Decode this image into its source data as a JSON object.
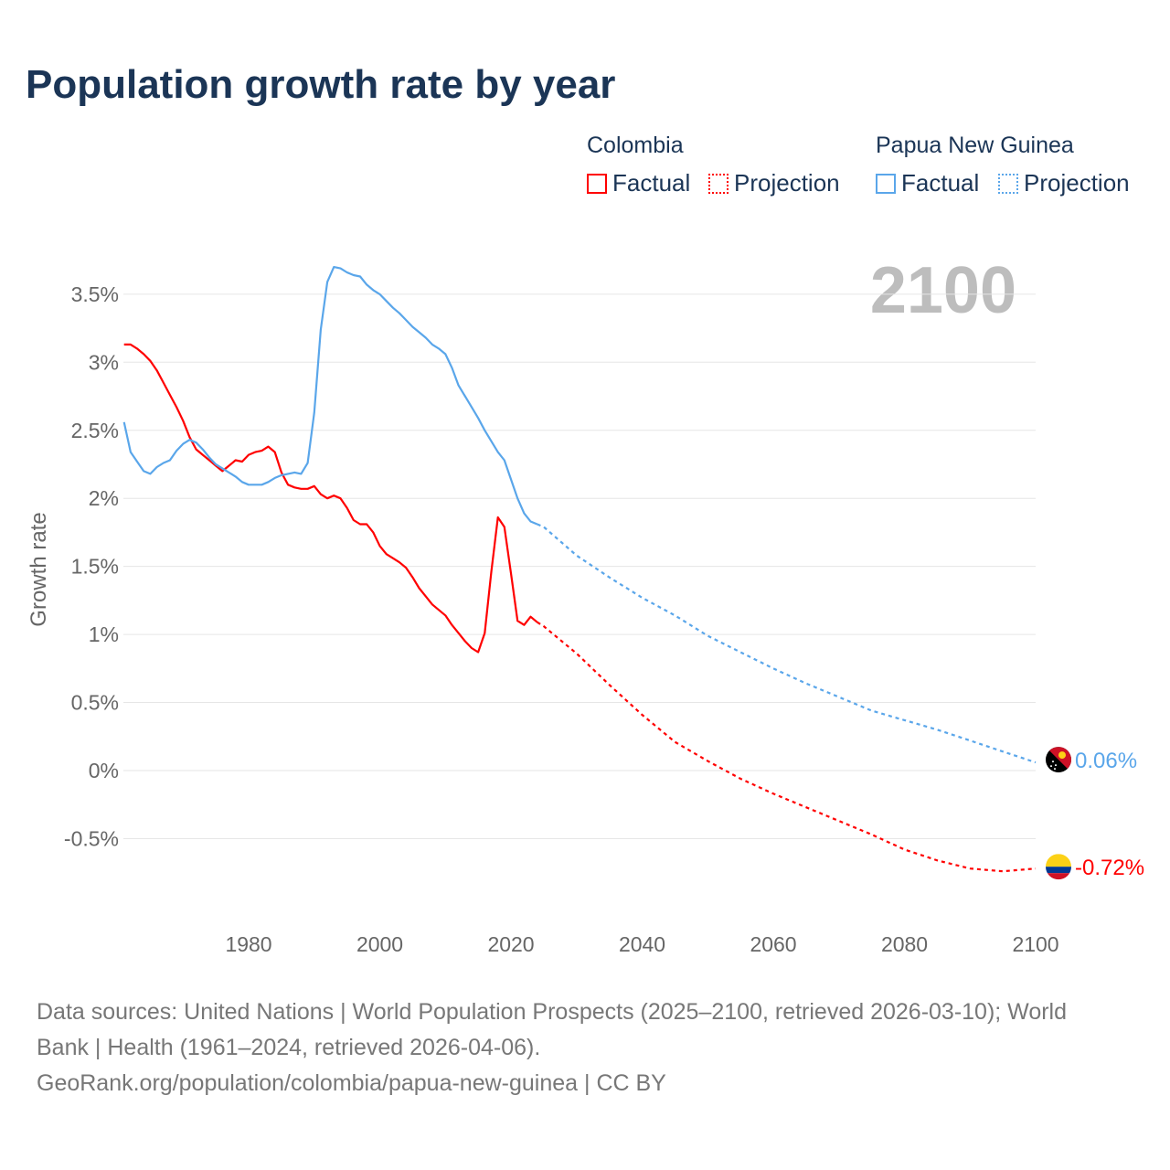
{
  "title": "Population growth rate by year",
  "legend": {
    "groups": [
      {
        "country": "Colombia",
        "factual": "Factual",
        "projection": "Projection",
        "color": "#ff0000"
      },
      {
        "country": "Papua New Guinea",
        "factual": "Factual",
        "projection": "Projection",
        "color": "#5aa6ea"
      }
    ]
  },
  "chart_data": {
    "type": "line",
    "title": "Population growth rate by year",
    "ylabel": "Growth rate",
    "xlabel": "",
    "year_watermark": "2100",
    "xlim": [
      1961,
      2100
    ],
    "ylim": [
      -1.0,
      3.8
    ],
    "x_ticks": [
      "1980",
      "2000",
      "2020",
      "2040",
      "2060",
      "2080",
      "2100"
    ],
    "x_tick_values": [
      1980,
      2000,
      2020,
      2040,
      2060,
      2080,
      2100
    ],
    "y_ticks": [
      "-0.5%",
      "0%",
      "0.5%",
      "1%",
      "1.5%",
      "2%",
      "2.5%",
      "3%",
      "3.5%"
    ],
    "y_tick_values": [
      -0.5,
      0,
      0.5,
      1,
      1.5,
      2,
      2.5,
      3,
      3.5
    ],
    "grid": true,
    "series": [
      {
        "name": "Colombia",
        "color": "#ff0000",
        "end_label": "-0.72%",
        "flag": "colombia-flag",
        "factual": {
          "start_year": 1961,
          "values": [
            3.13,
            3.13,
            3.1,
            3.06,
            3.01,
            2.94,
            2.85,
            2.76,
            2.67,
            2.57,
            2.45,
            2.36,
            2.32,
            2.28,
            2.24,
            2.2,
            2.24,
            2.28,
            2.27,
            2.32,
            2.34,
            2.35,
            2.38,
            2.34,
            2.19,
            2.1,
            2.08,
            2.07,
            2.07,
            2.09,
            2.03,
            2.0,
            2.02,
            2.0,
            1.93,
            1.84,
            1.81,
            1.81,
            1.75,
            1.65,
            1.59,
            1.56,
            1.53,
            1.49,
            1.42,
            1.34,
            1.28,
            1.22,
            1.18,
            1.14,
            1.07,
            1.01,
            0.95,
            0.9,
            0.87,
            1.01,
            1.46,
            1.86,
            1.79,
            1.45,
            1.1,
            1.07,
            1.13,
            1.09
          ]
        },
        "projection": {
          "years": [
            2024,
            2025,
            2030,
            2035,
            2040,
            2045,
            2050,
            2055,
            2060,
            2065,
            2070,
            2075,
            2080,
            2085,
            2090,
            2095,
            2100
          ],
          "values": [
            1.09,
            1.06,
            0.86,
            0.63,
            0.41,
            0.21,
            0.07,
            -0.06,
            -0.17,
            -0.27,
            -0.37,
            -0.47,
            -0.58,
            -0.66,
            -0.72,
            -0.74,
            -0.72
          ]
        }
      },
      {
        "name": "Papua New Guinea",
        "color": "#5aa6ea",
        "end_label": "0.06%",
        "flag": "papua-new-guinea-flag",
        "factual": {
          "start_year": 1961,
          "values": [
            2.56,
            2.34,
            2.27,
            2.2,
            2.18,
            2.23,
            2.26,
            2.28,
            2.35,
            2.4,
            2.43,
            2.41,
            2.36,
            2.3,
            2.25,
            2.22,
            2.19,
            2.16,
            2.12,
            2.1,
            2.1,
            2.1,
            2.12,
            2.15,
            2.17,
            2.18,
            2.19,
            2.18,
            2.26,
            2.63,
            3.24,
            3.59,
            3.7,
            3.69,
            3.66,
            3.64,
            3.63,
            3.57,
            3.53,
            3.5,
            3.45,
            3.4,
            3.36,
            3.31,
            3.26,
            3.22,
            3.18,
            3.13,
            3.1,
            3.06,
            2.96,
            2.83,
            2.75,
            2.67,
            2.59,
            2.5,
            2.42,
            2.34,
            2.28,
            2.14,
            2.0,
            1.89,
            1.83,
            1.81
          ]
        },
        "projection": {
          "years": [
            2024,
            2025,
            2030,
            2035,
            2040,
            2045,
            2050,
            2055,
            2060,
            2065,
            2070,
            2075,
            2080,
            2085,
            2090,
            2095,
            2100
          ],
          "values": [
            1.81,
            1.79,
            1.58,
            1.42,
            1.27,
            1.14,
            0.99,
            0.87,
            0.75,
            0.64,
            0.54,
            0.44,
            0.37,
            0.3,
            0.22,
            0.14,
            0.06
          ]
        }
      }
    ]
  },
  "footer": {
    "sources": "Data sources: United Nations | World Population Prospects (2025–2100, retrieved 2026-03-10); World Bank | Health (1961–2024, retrieved 2026-04-06).",
    "link": "GeoRank.org/population/colombia/papua-new-guinea | CC BY"
  }
}
